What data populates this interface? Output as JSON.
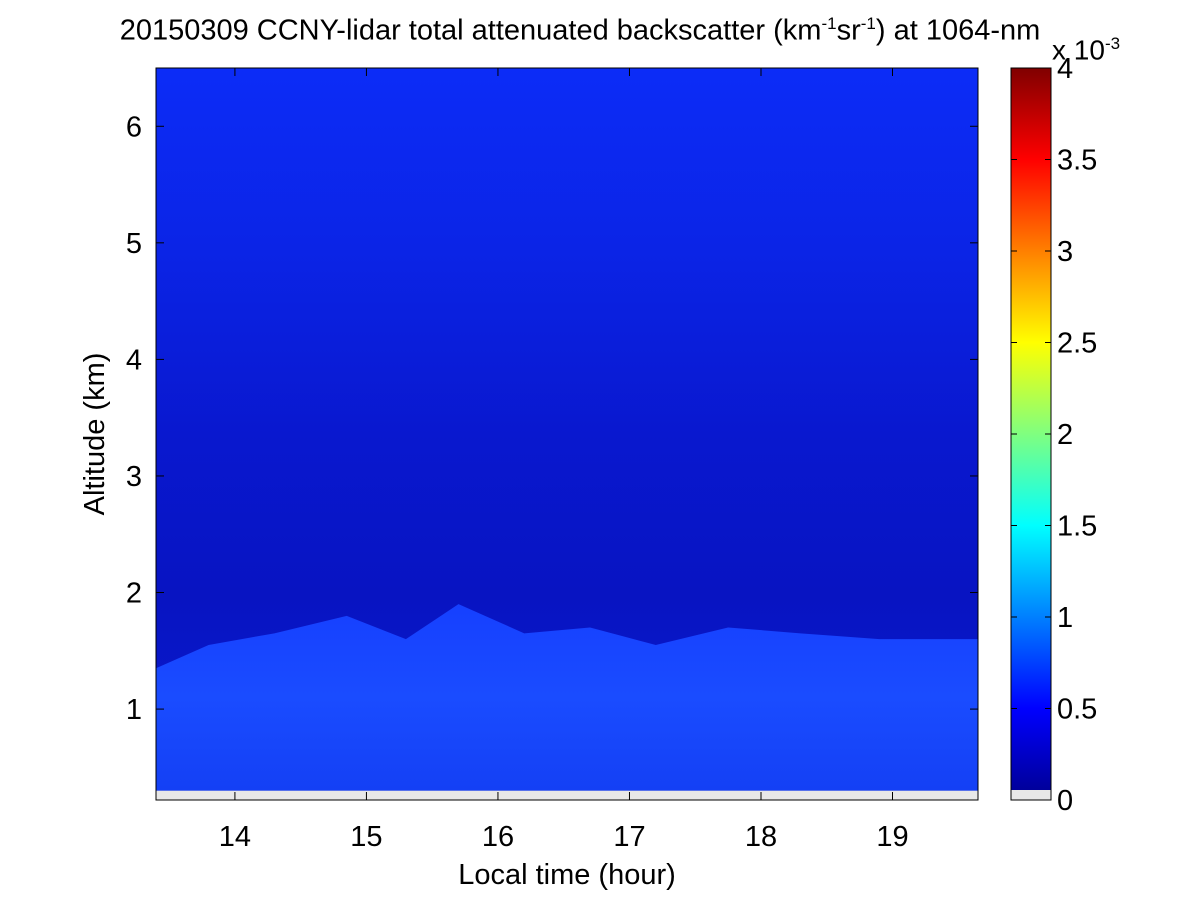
{
  "chart_data": {
    "type": "heatmap",
    "title_main": "20150309 CCNY-lidar total attenuated backscatter (km",
    "title_sup1": "-1",
    "title_mid": "sr",
    "title_sup2": "-1",
    "title_end": ") at 1064-nm",
    "xlabel": "Local time (hour)",
    "ylabel": "Altitude (km)",
    "xlim": [
      13.4,
      19.65
    ],
    "ylim": [
      0.22,
      6.5
    ],
    "x_ticks": [
      "14",
      "15",
      "16",
      "17",
      "18",
      "19"
    ],
    "y_ticks": [
      "1",
      "2",
      "3",
      "4",
      "5",
      "6"
    ],
    "colorbar": {
      "range": [
        0,
        4
      ],
      "ticks": [
        "0",
        "0.5",
        "1",
        "1.5",
        "2",
        "2.5",
        "3",
        "3.5",
        "4"
      ],
      "exponent_base": "x 10",
      "exponent_sup": "-3",
      "colormap": "jet"
    },
    "boundary_layer_top_km": [
      {
        "t": 13.4,
        "z": 1.35
      },
      {
        "t": 13.8,
        "z": 1.55
      },
      {
        "t": 14.3,
        "z": 1.65
      },
      {
        "t": 14.85,
        "z": 1.8
      },
      {
        "t": 15.3,
        "z": 1.6
      },
      {
        "t": 15.7,
        "z": 1.9
      },
      {
        "t": 16.2,
        "z": 1.65
      },
      {
        "t": 16.7,
        "z": 1.7
      },
      {
        "t": 17.2,
        "z": 1.55
      },
      {
        "t": 17.75,
        "z": 1.7
      },
      {
        "t": 18.3,
        "z": 1.65
      },
      {
        "t": 18.9,
        "z": 1.6
      },
      {
        "t": 19.65,
        "z": 1.6
      }
    ],
    "boundary_layer_value": 0.75,
    "free_troposphere_value": 0.3,
    "upper_value": 0.45,
    "no_data_below_km": 0.3,
    "colors": {
      "no_data": "#e8e8e8",
      "bl_bright": "#1a4dff",
      "bl_base": "#0f2eff",
      "mid_dark": "#0a14c8",
      "upper": "#0b26ee",
      "top": "#0c2cf7"
    }
  }
}
